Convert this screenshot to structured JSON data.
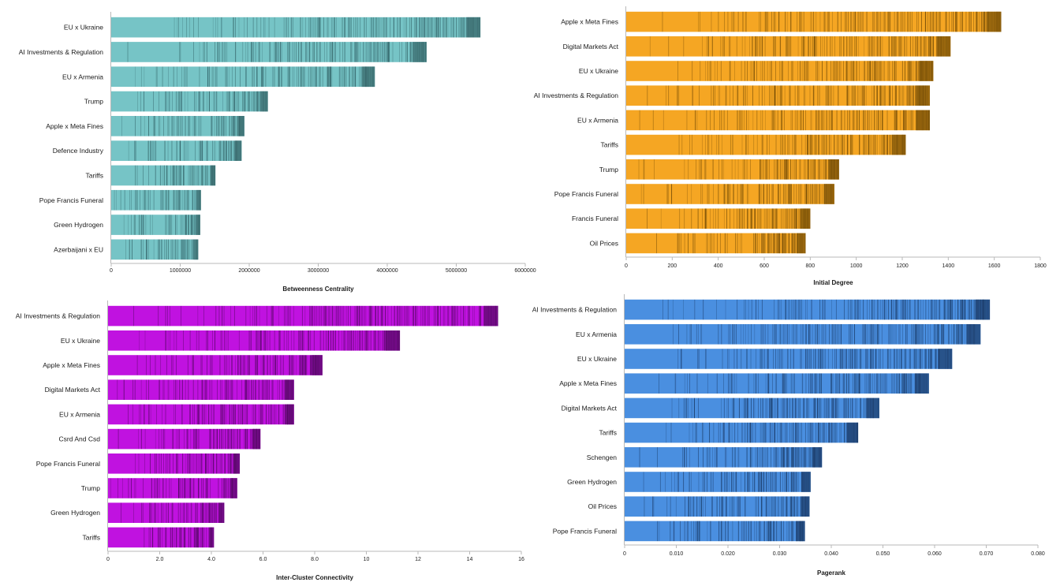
{
  "chart_data": [
    {
      "type": "bar",
      "orientation": "horizontal",
      "title": "",
      "xlabel": "Betweenness Centrality",
      "ylabel": "",
      "categories": [
        "EU x Ukraine",
        "AI Investments & Regulation",
        "EU x Armenia",
        "Trump",
        "Apple x Meta Fines",
        "Defence Industry",
        "Tariffs",
        "Pope Francis Funeral",
        "Green Hydrogen",
        "Azerbaijani x EU"
      ],
      "values": [
        5350000,
        4570000,
        3820000,
        2270000,
        1930000,
        1890000,
        1510000,
        1300000,
        1290000,
        1260000
      ],
      "xlim": [
        0,
        6000000
      ],
      "xticks": [
        "0",
        "1000000",
        "2000000",
        "3000000",
        "4000000",
        "5000000",
        "6000000"
      ],
      "colors": {
        "bar": "#76c4c6",
        "stripe": "#2f5d62",
        "dark": "#3a6a6c"
      }
    },
    {
      "type": "bar",
      "orientation": "horizontal",
      "title": "",
      "xlabel": "Initial Degree",
      "ylabel": "",
      "categories": [
        "Apple x Meta Fines",
        "Digital Markets Act",
        "EU x Ukraine",
        "AI Investments & Regulation",
        "EU x Armenia",
        "Tariffs",
        "Trump",
        "Pope Francis Funeral",
        "Francis Funeral",
        "Oil Prices"
      ],
      "values": [
        1630,
        1410,
        1335,
        1320,
        1320,
        1215,
        925,
        905,
        800,
        780
      ],
      "xlim": [
        0,
        1800
      ],
      "xticks": [
        "0",
        "200",
        "400",
        "600",
        "800",
        "1000",
        "1200",
        "1400",
        "1600",
        "1800"
      ],
      "colors": {
        "bar": "#f5a623",
        "stripe": "#6b4605",
        "dark": "#7a5208"
      }
    },
    {
      "type": "bar",
      "orientation": "horizontal",
      "title": "",
      "xlabel": "Inter-Cluster Connectivity",
      "ylabel": "",
      "categories": [
        "AI Investments & Regulation",
        "EU x Ukraine",
        "Apple x Meta Fines",
        "Digital Markets Act",
        "EU x Armenia",
        "Csrd And Csd",
        "Pope Francis Funeral",
        "Trump",
        "Green Hydrogen",
        "Tariffs"
      ],
      "values": [
        15.1,
        11.3,
        8.3,
        7.2,
        7.2,
        5.9,
        5.1,
        5.0,
        4.5,
        4.1
      ],
      "xlim": [
        0,
        16
      ],
      "xticks": [
        "0",
        "2.0",
        "4.0",
        "6.0",
        "8.0",
        "10",
        "12",
        "14",
        "16"
      ],
      "colors": {
        "bar": "#c012e0",
        "stripe": "#4a0657",
        "dark": "#5a0a6a"
      }
    },
    {
      "type": "bar",
      "orientation": "horizontal",
      "title": "",
      "xlabel": "Pagerank",
      "ylabel": "",
      "categories": [
        "AI Investments & Regulation",
        "EU x Armenia",
        "EU x Ukraine",
        "Apple x Meta Fines",
        "Digital Markets Act",
        "Tariffs",
        "Schengen",
        "Green Hydrogen",
        "Oil Prices",
        "Pope Francis Funeral"
      ],
      "values": [
        0.0707,
        0.0689,
        0.0634,
        0.0589,
        0.0493,
        0.0452,
        0.0382,
        0.036,
        0.0358,
        0.0349
      ],
      "xlim": [
        0,
        0.08
      ],
      "xticks": [
        "0",
        "0.010",
        "0.020",
        "0.030",
        "0.040",
        "0.050",
        "0.060",
        "0.070",
        "0.080"
      ],
      "colors": {
        "bar": "#4a8fe0",
        "stripe": "#16335c",
        "dark": "#1e3f6e"
      }
    }
  ]
}
